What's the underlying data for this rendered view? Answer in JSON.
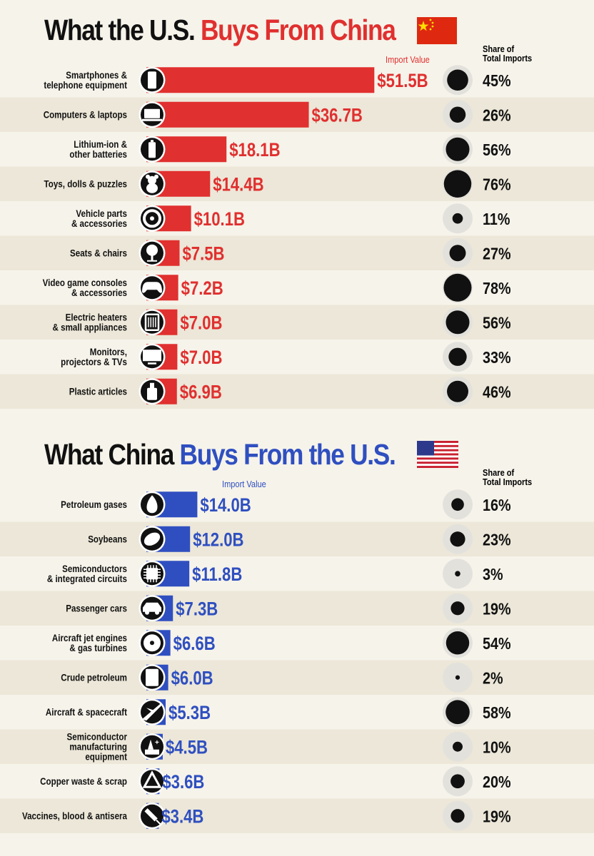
{
  "colors": {
    "china_red": "#e0302f",
    "us_blue": "#2f4fc0",
    "band": "#ece7d8",
    "dark": "#111111",
    "circle_bg": "#e3e1dc"
  },
  "chart_data": [
    {
      "type": "bar",
      "title_prefix": "What the U.S.",
      "title_highlight": "Buys From China",
      "flag": "china-flag-icon",
      "value_header": "Import Value",
      "share_header_line1": "Share of",
      "share_header_line2": "Total Imports",
      "unit": "$B",
      "categories": [
        "Smartphones & telephone equipment",
        "Computers & laptops",
        "Lithium-ion & other batteries",
        "Toys, dolls & puzzles",
        "Vehicle parts & accessories",
        "Seats & chairs",
        "Video game consoles & accessories",
        "Electric heaters & small appliances",
        "Monitors, projectors & TVs",
        "Plastic articles"
      ],
      "category_lines": [
        [
          "Smartphones &",
          "telephone equipment"
        ],
        [
          "Computers & laptops"
        ],
        [
          "Lithium-ion &",
          "other batteries"
        ],
        [
          "Toys, dolls & puzzles"
        ],
        [
          "Vehicle parts",
          "& accessories"
        ],
        [
          "Seats & chairs"
        ],
        [
          "Video game consoles",
          "& accessories"
        ],
        [
          "Electric heaters",
          "& small appliances"
        ],
        [
          "Monitors,",
          "projectors & TVs"
        ],
        [
          "Plastic articles"
        ]
      ],
      "icons": [
        "smartphone-icon",
        "laptop-icon",
        "battery-icon",
        "teddy-bear-icon",
        "tire-icon",
        "chair-icon",
        "gamepad-icon",
        "heater-icon",
        "monitor-icon",
        "bottle-icon"
      ],
      "values": [
        51.5,
        36.7,
        18.1,
        14.4,
        10.1,
        7.5,
        7.2,
        7.0,
        7.0,
        6.9
      ],
      "value_labels": [
        "$51.5B",
        "$36.7B",
        "$18.1B",
        "$14.4B",
        "$10.1B",
        "$7.5B",
        "$7.2B",
        "$7.0B",
        "$7.0B",
        "$6.9B"
      ],
      "shares": [
        45,
        26,
        56,
        76,
        11,
        27,
        78,
        56,
        33,
        46
      ],
      "share_labels": [
        "45%",
        "26%",
        "56%",
        "76%",
        "11%",
        "27%",
        "78%",
        "56%",
        "33%",
        "46%"
      ]
    },
    {
      "type": "bar",
      "title_prefix": "What China",
      "title_highlight": "Buys From the U.S.",
      "flag": "us-flag-icon",
      "value_header": "Import Value",
      "share_header_line1": "Share of",
      "share_header_line2": "Total Imports",
      "unit": "$B",
      "categories": [
        "Petroleum gases",
        "Soybeans",
        "Semiconductors & integrated circuits",
        "Passenger cars",
        "Aircraft jet engines & gas turbines",
        "Crude petroleum",
        "Aircraft & spacecraft",
        "Semiconductor manufacturing equipment",
        "Copper waste & scrap",
        "Vaccines, blood & antisera"
      ],
      "category_lines": [
        [
          "Petroleum gases"
        ],
        [
          "Soybeans"
        ],
        [
          "Semiconductors",
          "& integrated circuits"
        ],
        [
          "Passenger cars"
        ],
        [
          "Aircraft jet engines",
          "& gas turbines"
        ],
        [
          "Crude petroleum"
        ],
        [
          "Aircraft & spacecraft"
        ],
        [
          "Semiconductor",
          "manufacturing",
          "equipment"
        ],
        [
          "Copper waste & scrap"
        ],
        [
          "Vaccines, blood & antisera"
        ]
      ],
      "icons": [
        "flame-icon",
        "soybean-icon",
        "chip-icon",
        "car-icon",
        "turbine-icon",
        "oil-barrel-icon",
        "airplane-icon",
        "manufacturing-icon",
        "recycle-icon",
        "syringe-icon"
      ],
      "values": [
        14.0,
        12.0,
        11.8,
        7.3,
        6.6,
        6.0,
        5.3,
        4.5,
        3.6,
        3.4
      ],
      "value_labels": [
        "$14.0B",
        "$12.0B",
        "$11.8B",
        "$7.3B",
        "$6.6B",
        "$6.0B",
        "$5.3B",
        "$4.5B",
        "$3.6B",
        "$3.4B"
      ],
      "shares": [
        16,
        23,
        3,
        19,
        54,
        2,
        58,
        10,
        20,
        19
      ],
      "share_labels": [
        "16%",
        "23%",
        "3%",
        "19%",
        "54%",
        "2%",
        "58%",
        "10%",
        "20%",
        "19%"
      ]
    }
  ]
}
